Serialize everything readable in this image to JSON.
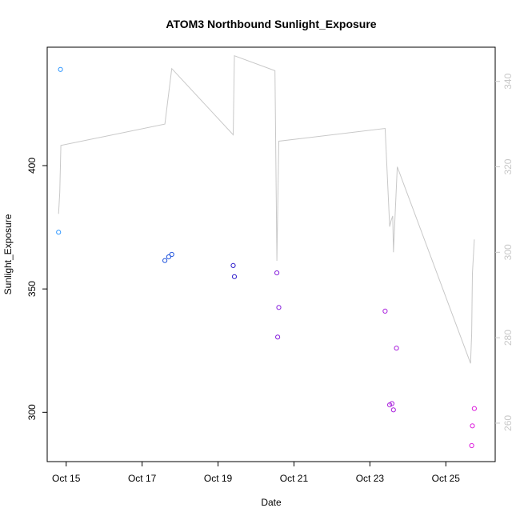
{
  "chart_data": {
    "type": "scatter",
    "title": "ATOM3 Northbound Sunlight_Exposure",
    "xlabel": "Date",
    "ylabel": "Sunlight_Exposure",
    "x_ticks": [
      "Oct 15",
      "Oct 17",
      "Oct 19",
      "Oct 21",
      "Oct 23",
      "Oct 25"
    ],
    "x_tick_days": [
      15,
      17,
      19,
      21,
      23,
      25
    ],
    "xlim": [
      14.5,
      26.3
    ],
    "ylim": [
      280,
      448
    ],
    "y_ticks": [
      300,
      350,
      400
    ],
    "y2lim": [
      251,
      348
    ],
    "y2_ticks": [
      260,
      280,
      300,
      320,
      340
    ],
    "grid": false,
    "legend": "none",
    "line_color": "#c8c8c8",
    "points": [
      {
        "day": 14.85,
        "value": 439,
        "color": "#3399ff"
      },
      {
        "day": 14.8,
        "value": 373,
        "color": "#3399ff"
      },
      {
        "day": 17.6,
        "value": 361.5,
        "color": "#2255dd"
      },
      {
        "day": 17.7,
        "value": 363,
        "color": "#2255dd"
      },
      {
        "day": 17.78,
        "value": 364,
        "color": "#2255dd"
      },
      {
        "day": 19.4,
        "value": 359.5,
        "color": "#3322cc"
      },
      {
        "day": 19.43,
        "value": 355,
        "color": "#3322cc"
      },
      {
        "day": 20.55,
        "value": 356.5,
        "color": "#8822dd"
      },
      {
        "day": 20.6,
        "value": 342.5,
        "color": "#8822dd"
      },
      {
        "day": 20.57,
        "value": 330.5,
        "color": "#8822dd"
      },
      {
        "day": 23.4,
        "value": 341,
        "color": "#aa22dd"
      },
      {
        "day": 23.7,
        "value": 326,
        "color": "#aa22dd"
      },
      {
        "day": 23.52,
        "value": 303,
        "color": "#aa22dd"
      },
      {
        "day": 23.58,
        "value": 303.5,
        "color": "#aa22dd"
      },
      {
        "day": 23.62,
        "value": 301,
        "color": "#aa22dd"
      },
      {
        "day": 25.75,
        "value": 301.5,
        "color": "#dd22dd"
      },
      {
        "day": 25.7,
        "value": 294.5,
        "color": "#dd22dd"
      },
      {
        "day": 25.68,
        "value": 286.5,
        "color": "#dd22dd"
      }
    ],
    "line": [
      {
        "day": 14.8,
        "value": 309
      },
      {
        "day": 14.83,
        "value": 314
      },
      {
        "day": 14.86,
        "value": 325
      },
      {
        "day": 17.6,
        "value": 330
      },
      {
        "day": 17.78,
        "value": 343
      },
      {
        "day": 19.4,
        "value": 327.5
      },
      {
        "day": 19.43,
        "value": 346
      },
      {
        "day": 20.5,
        "value": 342.5
      },
      {
        "day": 20.55,
        "value": 298
      },
      {
        "day": 20.6,
        "value": 326
      },
      {
        "day": 23.4,
        "value": 329
      },
      {
        "day": 23.52,
        "value": 306
      },
      {
        "day": 23.56,
        "value": 307.5
      },
      {
        "day": 23.6,
        "value": 308.5
      },
      {
        "day": 23.62,
        "value": 300
      },
      {
        "day": 23.72,
        "value": 320
      },
      {
        "day": 25.65,
        "value": 274
      },
      {
        "day": 25.68,
        "value": 281
      },
      {
        "day": 25.7,
        "value": 295
      },
      {
        "day": 25.75,
        "value": 303
      }
    ]
  }
}
